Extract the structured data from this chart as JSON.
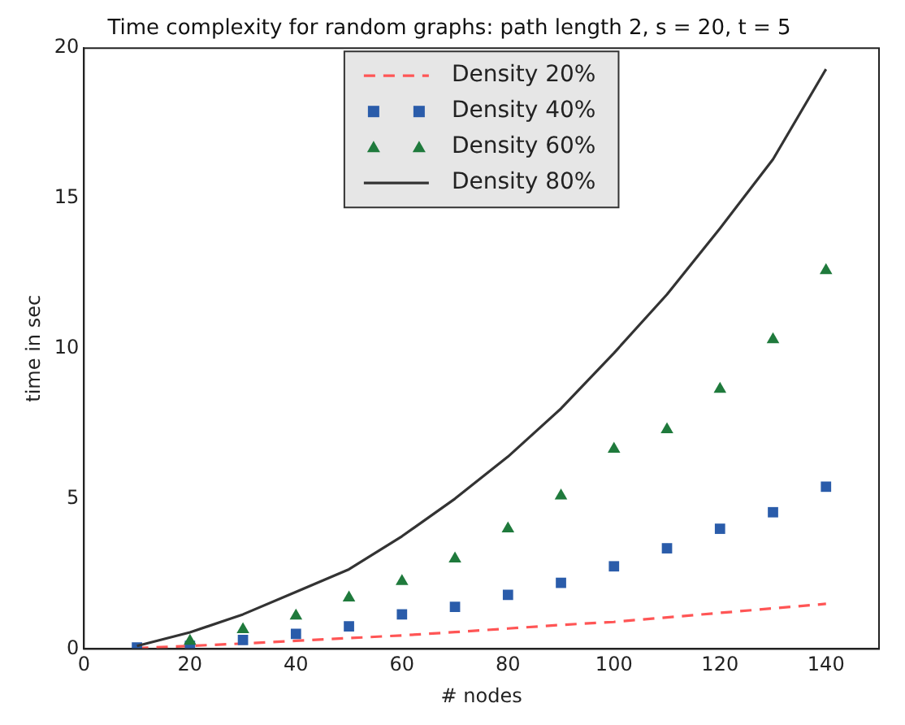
{
  "chart_data": {
    "type": "line",
    "title": "Time complexity for random graphs: path length 2, s = 20, t = 5",
    "xlabel": "# nodes",
    "ylabel": "time in sec",
    "x": [
      10,
      20,
      30,
      40,
      50,
      60,
      70,
      80,
      90,
      100,
      110,
      120,
      130,
      140
    ],
    "series": [
      {
        "name": "Density 20%",
        "type": "line",
        "line_style": "dashed",
        "marker": "none",
        "color": "#ff5555",
        "values": [
          0.03,
          0.1,
          0.18,
          0.27,
          0.36,
          0.45,
          0.56,
          0.68,
          0.8,
          0.9,
          1.05,
          1.2,
          1.35,
          1.5
        ]
      },
      {
        "name": "Density 40%",
        "type": "scatter",
        "marker": "square",
        "color": "#2a5caa",
        "values": [
          0.05,
          0.1,
          0.3,
          0.5,
          0.75,
          1.15,
          1.4,
          1.8,
          2.2,
          2.75,
          3.35,
          4.0,
          4.55,
          5.4
        ]
      },
      {
        "name": "Density 60%",
        "type": "scatter",
        "marker": "triangle",
        "color": "#1f7a3c",
        "values": [
          null,
          0.26,
          0.65,
          1.1,
          1.7,
          2.25,
          3.0,
          4.0,
          5.1,
          6.65,
          7.3,
          8.65,
          10.3,
          12.6
        ]
      },
      {
        "name": "Density 80%",
        "type": "line",
        "line_style": "solid",
        "marker": "none",
        "color": "#333333",
        "values": [
          0.1,
          0.55,
          1.15,
          1.9,
          2.65,
          3.75,
          5.0,
          6.4,
          8.0,
          9.85,
          11.8,
          14.0,
          16.3,
          19.3
        ]
      }
    ],
    "xlim": [
      0,
      150
    ],
    "xticks": [
      0,
      20,
      40,
      60,
      80,
      100,
      120,
      140
    ],
    "ylim": [
      0,
      20
    ],
    "yticks": [
      0,
      5,
      10,
      15,
      20
    ],
    "grid": false,
    "legend": "top"
  }
}
